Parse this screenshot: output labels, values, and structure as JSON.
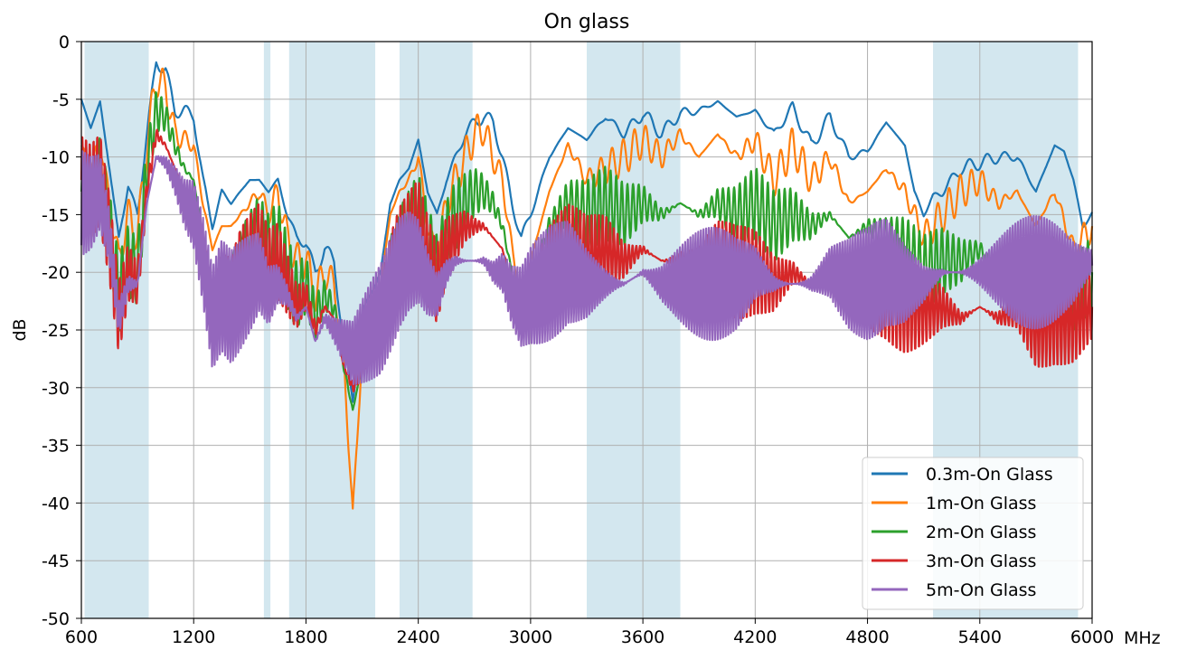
{
  "chart_data": {
    "type": "line",
    "title": "On glass",
    "xlabel": "",
    "x_unit_label": "MHz",
    "ylabel": "dB",
    "xlim": [
      600,
      6000
    ],
    "ylim": [
      -50,
      0
    ],
    "x_ticks": [
      600,
      1200,
      1800,
      2400,
      3000,
      3600,
      4200,
      4800,
      5400,
      6000
    ],
    "y_ticks": [
      0,
      -5,
      -10,
      -15,
      -20,
      -25,
      -30,
      -35,
      -40,
      -45,
      -50
    ],
    "grid": true,
    "legend_position": "bottom-right",
    "shaded_bands": [
      {
        "from": 617,
        "to": 960,
        "color": "#d3e7ef"
      },
      {
        "from": 1575,
        "to": 1610,
        "color": "#d3e7ef"
      },
      {
        "from": 1710,
        "to": 2170,
        "color": "#d3e7ef"
      },
      {
        "from": 2300,
        "to": 2690,
        "color": "#d3e7ef"
      },
      {
        "from": 3300,
        "to": 3800,
        "color": "#d3e7ef"
      },
      {
        "from": 5150,
        "to": 5925,
        "color": "#d3e7ef"
      }
    ],
    "series": [
      {
        "name": "0.3m-On Glass",
        "color": "#1f77b4",
        "x": [
          600,
          650,
          700,
          750,
          800,
          850,
          900,
          950,
          1000,
          1050,
          1100,
          1150,
          1200,
          1250,
          1300,
          1350,
          1400,
          1450,
          1500,
          1550,
          1600,
          1650,
          1700,
          1750,
          1800,
          1850,
          1900,
          1950,
          2000,
          2050,
          2100,
          2150,
          2200,
          2250,
          2300,
          2350,
          2400,
          2450,
          2500,
          2550,
          2600,
          2650,
          2700,
          2750,
          2800,
          2850,
          2900,
          2950,
          3000,
          3100,
          3200,
          3300,
          3400,
          3500,
          3600,
          3700,
          3800,
          3900,
          4000,
          4100,
          4200,
          4300,
          4400,
          4500,
          4600,
          4700,
          4800,
          4900,
          5000,
          5050,
          5100,
          5150,
          5200,
          5300,
          5400,
          5500,
          5600,
          5700,
          5800,
          5850,
          5900,
          5950,
          6000
        ],
        "y": [
          -5,
          -7.5,
          -5.2,
          -11,
          -17,
          -12.5,
          -15,
          -8,
          -1.7,
          -2.5,
          -6,
          -6,
          -6.5,
          -12,
          -16,
          -13,
          -14,
          -13,
          -12,
          -12,
          -13,
          -12,
          -15,
          -17,
          -17.5,
          -20,
          -18,
          -19,
          -26,
          -31,
          -24,
          -21.5,
          -20,
          -14,
          -12,
          -11,
          -8.5,
          -13,
          -15,
          -12,
          -10,
          -8,
          -7,
          -6.5,
          -7,
          -10,
          -14,
          -17,
          -15,
          -10,
          -7.5,
          -8.5,
          -6.5,
          -8,
          -6.2,
          -8,
          -6.2,
          -6,
          -5.2,
          -6.5,
          -6,
          -8,
          -5.7,
          -9,
          -6.5,
          -10,
          -9.5,
          -7,
          -9,
          -13,
          -15,
          -13.5,
          -13,
          -11,
          -10.5,
          -10,
          -10,
          -13,
          -9,
          -9.5,
          -12,
          -16,
          -15
        ]
      },
      {
        "name": "1m-On Glass",
        "color": "#ff7f0e",
        "x": [
          600,
          650,
          700,
          750,
          800,
          850,
          900,
          950,
          1000,
          1050,
          1100,
          1150,
          1200,
          1250,
          1300,
          1350,
          1400,
          1450,
          1500,
          1550,
          1600,
          1650,
          1700,
          1750,
          1800,
          1850,
          1900,
          1950,
          2000,
          2050,
          2100,
          2150,
          2200,
          2250,
          2300,
          2350,
          2400,
          2450,
          2500,
          2550,
          2600,
          2650,
          2700,
          2750,
          2800,
          2850,
          2900,
          2950,
          3000,
          3100,
          3200,
          3300,
          3400,
          3500,
          3600,
          3700,
          3800,
          3900,
          4000,
          4100,
          4200,
          4300,
          4400,
          4500,
          4600,
          4700,
          4800,
          4900,
          5000,
          5100,
          5200,
          5300,
          5400,
          5500,
          5600,
          5700,
          5800,
          5900,
          6000
        ],
        "y": [
          -9,
          -11,
          -8.5,
          -14,
          -19,
          -15,
          -17,
          -9,
          -3.2,
          -4,
          -8,
          -8.5,
          -9,
          -14,
          -18,
          -16,
          -16,
          -15,
          -14,
          -13,
          -15,
          -13,
          -17,
          -19,
          -19,
          -22,
          -20,
          -21,
          -27,
          -41,
          -27,
          -23,
          -21,
          -15,
          -13,
          -12,
          -10,
          -16,
          -19,
          -14,
          -12,
          -10,
          -8,
          -7.5,
          -10,
          -12,
          -18,
          -22,
          -19,
          -13,
          -9,
          -12,
          -11,
          -10,
          -8.5,
          -10,
          -8,
          -10,
          -8,
          -10,
          -8.5,
          -12,
          -9,
          -12,
          -10,
          -14,
          -13,
          -11,
          -13,
          -17,
          -15,
          -13,
          -12,
          -14,
          -13,
          -16,
          -13,
          -18,
          -16
        ]
      },
      {
        "name": "2m-On Glass",
        "color": "#2ca02c",
        "x": [
          600,
          650,
          700,
          750,
          800,
          850,
          900,
          950,
          1000,
          1050,
          1100,
          1150,
          1200,
          1250,
          1300,
          1350,
          1400,
          1450,
          1500,
          1550,
          1600,
          1650,
          1700,
          1750,
          1800,
          1850,
          1900,
          1950,
          2000,
          2050,
          2100,
          2150,
          2200,
          2250,
          2300,
          2350,
          2400,
          2450,
          2500,
          2550,
          2600,
          2650,
          2700,
          2750,
          2800,
          2850,
          2900,
          2950,
          3000,
          3100,
          3200,
          3300,
          3400,
          3500,
          3600,
          3700,
          3800,
          3900,
          4000,
          4100,
          4200,
          4300,
          4400,
          4500,
          4600,
          4700,
          4800,
          4900,
          5000,
          5100,
          5200,
          5300,
          5400,
          5500,
          5600,
          5700,
          5800,
          5900,
          6000
        ],
        "y": [
          -13,
          -14,
          -11,
          -16,
          -22,
          -19,
          -20,
          -11,
          -6,
          -6.5,
          -9,
          -11,
          -12,
          -17,
          -22,
          -19,
          -20,
          -18,
          -17,
          -16,
          -18,
          -17,
          -20,
          -22,
          -21,
          -24,
          -22,
          -23,
          -28,
          -32,
          -28,
          -25,
          -23,
          -18,
          -16,
          -15,
          -14,
          -17,
          -20,
          -17,
          -15,
          -14,
          -13,
          -13,
          -14,
          -16,
          -20,
          -24,
          -21,
          -16,
          -14,
          -15,
          -14,
          -15,
          -14,
          -15,
          -14,
          -15,
          -14,
          -15,
          -14,
          -16,
          -15,
          -16,
          -15,
          -17,
          -16,
          -17,
          -18,
          -20,
          -19,
          -19,
          -18,
          -20,
          -19,
          -21,
          -19,
          -22,
          -20
        ]
      },
      {
        "name": "3m-On Glass",
        "color": "#d62728",
        "x": [
          600,
          650,
          700,
          750,
          800,
          850,
          900,
          950,
          1000,
          1050,
          1100,
          1150,
          1200,
          1250,
          1300,
          1350,
          1400,
          1450,
          1500,
          1550,
          1600,
          1650,
          1700,
          1750,
          1800,
          1850,
          1900,
          1950,
          2000,
          2050,
          2100,
          2150,
          2200,
          2250,
          2300,
          2350,
          2400,
          2450,
          2500,
          2550,
          2600,
          2650,
          2700,
          2750,
          2800,
          2850,
          2900,
          2950,
          3000,
          3100,
          3200,
          3300,
          3400,
          3500,
          3600,
          3700,
          3800,
          3900,
          4000,
          4100,
          4200,
          4300,
          4400,
          4500,
          4600,
          4700,
          4800,
          4900,
          5000,
          5100,
          5200,
          5300,
          5400,
          5500,
          5600,
          5700,
          5800,
          5900,
          6000
        ],
        "y": [
          -12,
          -13,
          -12,
          -17,
          -24,
          -20,
          -21,
          -13,
          -8,
          -9,
          -11,
          -13,
          -14,
          -18,
          -23,
          -21,
          -22,
          -20,
          -19,
          -18,
          -20,
          -19,
          -21,
          -23,
          -22,
          -25,
          -23,
          -24,
          -28,
          -30,
          -28,
          -25,
          -24,
          -20,
          -18,
          -17,
          -16,
          -19,
          -21,
          -18,
          -17,
          -16,
          -16,
          -16,
          -17,
          -18,
          -21,
          -24,
          -22,
          -19,
          -18,
          -19,
          -18,
          -19,
          -18,
          -19,
          -19,
          -20,
          -19,
          -20,
          -20,
          -21,
          -20,
          -21,
          -21,
          -22,
          -22,
          -22,
          -23,
          -23,
          -23,
          -24,
          -23,
          -24,
          -23,
          -25,
          -24,
          -24,
          -23
        ]
      },
      {
        "name": "5m-On Glass",
        "color": "#9467bd",
        "x": [
          600,
          650,
          700,
          750,
          800,
          850,
          900,
          950,
          1000,
          1050,
          1100,
          1150,
          1200,
          1250,
          1300,
          1350,
          1400,
          1450,
          1500,
          1550,
          1600,
          1650,
          1700,
          1750,
          1800,
          1850,
          1900,
          1950,
          2000,
          2050,
          2100,
          2150,
          2200,
          2250,
          2300,
          2350,
          2400,
          2450,
          2500,
          2550,
          2600,
          2650,
          2700,
          2750,
          2800,
          2850,
          2900,
          2950,
          3000,
          3100,
          3200,
          3300,
          3400,
          3500,
          3600,
          3700,
          3800,
          3900,
          4000,
          4100,
          4200,
          4300,
          4400,
          4500,
          4600,
          4700,
          4800,
          4900,
          5000,
          5100,
          5200,
          5300,
          5400,
          5500,
          5600,
          5700,
          5800,
          5900,
          6000
        ],
        "y": [
          -14,
          -14,
          -13,
          -17,
          -24,
          -21,
          -21,
          -14,
          -10,
          -10.5,
          -12,
          -14,
          -15,
          -19,
          -24,
          -22,
          -23,
          -22,
          -21,
          -20,
          -22,
          -21,
          -22,
          -24,
          -23,
          -26,
          -24,
          -25,
          -26,
          -27,
          -26,
          -25,
          -24,
          -22,
          -20,
          -19,
          -19,
          -21,
          -22,
          -20,
          -19,
          -19,
          -19,
          -19,
          -20,
          -20,
          -22,
          -23,
          -22,
          -21,
          -20,
          -21,
          -21,
          -21,
          -20,
          -21,
          -21,
          -21,
          -21,
          -21,
          -20,
          -21,
          -21,
          -21,
          -20,
          -21,
          -21,
          -20,
          -21,
          -21,
          -20,
          -20,
          -20,
          -20,
          -20,
          -20,
          -20,
          -20,
          -19
        ]
      }
    ]
  }
}
